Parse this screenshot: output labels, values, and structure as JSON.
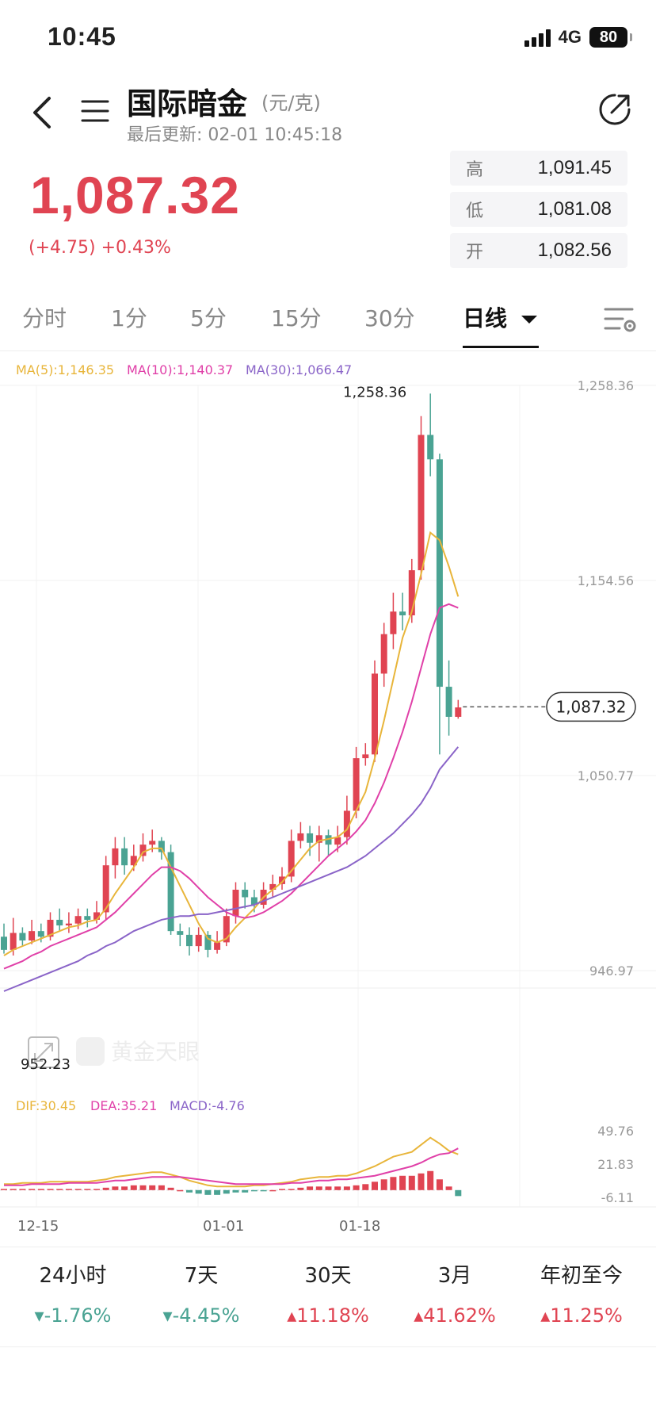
{
  "status_bar": {
    "time": "10:45",
    "network": "4G",
    "battery": "80"
  },
  "header": {
    "title": "国际暗金",
    "unit": "(元/克)",
    "updated": "最后更新: 02-01 10:45:18"
  },
  "quote": {
    "price": "1,087.32",
    "change": "(+4.75)  +0.43%",
    "high_label": "高",
    "high": "1,091.45",
    "low_label": "低",
    "low": "1,081.08",
    "open_label": "开",
    "open": "1,082.56"
  },
  "tabs": [
    {
      "label": "分时"
    },
    {
      "label": "1分"
    },
    {
      "label": "5分"
    },
    {
      "label": "15分"
    },
    {
      "label": "30分"
    },
    {
      "label": "日线"
    }
  ],
  "colors": {
    "up": "#e04452",
    "down": "#4aa393",
    "ma5": "#e8b53a",
    "ma10": "#e040a8",
    "ma30": "#8a64c8"
  },
  "chart_data": {
    "type": "candlestick",
    "ma_legend": {
      "ma5": "MA(5):1,146.35",
      "ma10": "MA(10):1,140.37",
      "ma30": "MA(30):1,066.47"
    },
    "y_ticks": [
      "1,258.36",
      "1,154.56",
      "1,050.77",
      "946.97"
    ],
    "y_range": [
      946.97,
      1258.36
    ],
    "max_label": "1,258.36",
    "min_label": "952.23",
    "current_label": "1,087.32",
    "x_labels": [
      "12-15",
      "01-01",
      "01-18"
    ],
    "candles": [
      [
        965,
        958,
        972,
        956
      ],
      [
        958,
        967,
        975,
        955
      ],
      [
        967,
        963,
        970,
        960
      ],
      [
        963,
        968,
        974,
        961
      ],
      [
        968,
        965,
        972,
        962
      ],
      [
        965,
        974,
        978,
        963
      ],
      [
        974,
        971,
        980,
        968
      ],
      [
        971,
        972,
        978,
        967
      ],
      [
        972,
        976,
        980,
        969
      ],
      [
        976,
        974,
        980,
        970
      ],
      [
        974,
        978,
        984,
        972
      ],
      [
        978,
        1003,
        1008,
        974
      ],
      [
        1003,
        1012,
        1018,
        996
      ],
      [
        1012,
        1003,
        1018,
        998
      ],
      [
        1003,
        1008,
        1014,
        1000
      ],
      [
        1008,
        1014,
        1020,
        1005
      ],
      [
        1014,
        1016,
        1022,
        1010
      ],
      [
        1016,
        1010,
        1018,
        1006
      ],
      [
        1010,
        968,
        1014,
        966
      ],
      [
        968,
        966,
        972,
        960
      ],
      [
        966,
        960,
        970,
        955
      ],
      [
        960,
        966,
        970,
        957
      ],
      [
        966,
        958,
        968,
        954
      ],
      [
        958,
        962,
        968,
        956
      ],
      [
        962,
        976,
        980,
        960
      ],
      [
        976,
        990,
        994,
        972
      ],
      [
        990,
        986,
        994,
        980
      ],
      [
        986,
        982,
        990,
        978
      ],
      [
        982,
        990,
        994,
        980
      ],
      [
        990,
        993,
        998,
        986
      ],
      [
        993,
        997,
        1002,
        990
      ],
      [
        997,
        1016,
        1022,
        994
      ],
      [
        1016,
        1020,
        1026,
        1012
      ],
      [
        1020,
        1015,
        1024,
        1008
      ],
      [
        1015,
        1019,
        1024,
        1005
      ],
      [
        1019,
        1014,
        1022,
        1008
      ],
      [
        1014,
        1018,
        1024,
        1010
      ],
      [
        1018,
        1032,
        1040,
        1014
      ],
      [
        1032,
        1060,
        1066,
        1028
      ],
      [
        1060,
        1062,
        1068,
        1056
      ],
      [
        1062,
        1105,
        1112,
        1058
      ],
      [
        1105,
        1126,
        1132,
        1098
      ],
      [
        1126,
        1138,
        1148,
        1118
      ],
      [
        1138,
        1136,
        1148,
        1128
      ],
      [
        1136,
        1160,
        1166,
        1132
      ],
      [
        1160,
        1232,
        1242,
        1155
      ],
      [
        1232,
        1219,
        1254,
        1210
      ],
      [
        1219,
        1098,
        1222,
        1062
      ],
      [
        1098,
        1082,
        1112,
        1072
      ],
      [
        1082,
        1087,
        1091,
        1081
      ]
    ],
    "ma5": [
      955,
      958,
      960,
      962,
      964,
      966,
      968,
      970,
      971,
      973,
      974,
      980,
      988,
      995,
      1002,
      1010,
      1012,
      1012,
      1002,
      992,
      982,
      972,
      964,
      962,
      964,
      970,
      975,
      980,
      986,
      990,
      994,
      1000,
      1006,
      1012,
      1016,
      1017,
      1018,
      1022,
      1032,
      1042,
      1060,
      1080,
      1102,
      1124,
      1138,
      1158,
      1180,
      1176,
      1162,
      1146
    ],
    "ma10": [
      948,
      950,
      952,
      955,
      957,
      960,
      962,
      964,
      966,
      968,
      970,
      974,
      978,
      983,
      988,
      993,
      998,
      1002,
      1002,
      1000,
      996,
      991,
      986,
      982,
      978,
      976,
      975,
      976,
      978,
      981,
      984,
      988,
      993,
      998,
      1003,
      1008,
      1012,
      1016,
      1021,
      1027,
      1036,
      1047,
      1060,
      1074,
      1090,
      1108,
      1126,
      1140,
      1142,
      1140
    ],
    "ma30": [
      936,
      938,
      940,
      942,
      944,
      946,
      948,
      950,
      952,
      955,
      957,
      960,
      962,
      965,
      968,
      970,
      972,
      974,
      975,
      976,
      976,
      977,
      977,
      978,
      979,
      980,
      981,
      982,
      984,
      986,
      988,
      990,
      992,
      994,
      996,
      998,
      1000,
      1002,
      1005,
      1008,
      1012,
      1016,
      1020,
      1025,
      1030,
      1036,
      1044,
      1054,
      1060,
      1066
    ],
    "macd": {
      "legend_dif": "DIF:30.45",
      "legend_dea": "DEA:35.21",
      "legend_macd": "MACD:-4.76",
      "y_ticks": [
        "49.76",
        "21.83",
        "-6.11"
      ],
      "y_range": [
        -6.11,
        49.76
      ],
      "dif": [
        5,
        5,
        6,
        6,
        6,
        7,
        7,
        7,
        7,
        7,
        8,
        9,
        11,
        12,
        13,
        14,
        15,
        15,
        13,
        11,
        8,
        6,
        4,
        3,
        3,
        3,
        3,
        4,
        4,
        5,
        6,
        7,
        9,
        10,
        11,
        11,
        12,
        12,
        14,
        17,
        20,
        24,
        28,
        30,
        32,
        38,
        44,
        39,
        33,
        30
      ],
      "dea": [
        4,
        4,
        4,
        5,
        5,
        5,
        5,
        6,
        6,
        6,
        6,
        7,
        8,
        8,
        9,
        10,
        11,
        11,
        11,
        11,
        10,
        9,
        8,
        7,
        6,
        5,
        5,
        5,
        5,
        5,
        5,
        6,
        6,
        7,
        8,
        8,
        9,
        9,
        10,
        11,
        12,
        14,
        16,
        18,
        20,
        23,
        27,
        30,
        31,
        35
      ],
      "hist": [
        1,
        1,
        1,
        1,
        1,
        1,
        1,
        1,
        1,
        1,
        1,
        2,
        3,
        3,
        4,
        4,
        4,
        4,
        2,
        0,
        -2,
        -3,
        -4,
        -4,
        -3,
        -2,
        -2,
        -1,
        -1,
        0,
        1,
        1,
        2,
        3,
        3,
        3,
        3,
        3,
        4,
        5,
        7,
        9,
        11,
        12,
        12,
        14,
        16,
        9,
        3,
        -5
      ]
    }
  },
  "stats": [
    {
      "label": "24小时",
      "value": "-1.76%",
      "dir": "down"
    },
    {
      "label": "7天",
      "value": "-4.45%",
      "dir": "down"
    },
    {
      "label": "30天",
      "value": "11.18%",
      "dir": "up"
    },
    {
      "label": "3月",
      "value": "41.62%",
      "dir": "up"
    },
    {
      "label": "年初至今",
      "value": "11.25%",
      "dir": "up"
    }
  ]
}
